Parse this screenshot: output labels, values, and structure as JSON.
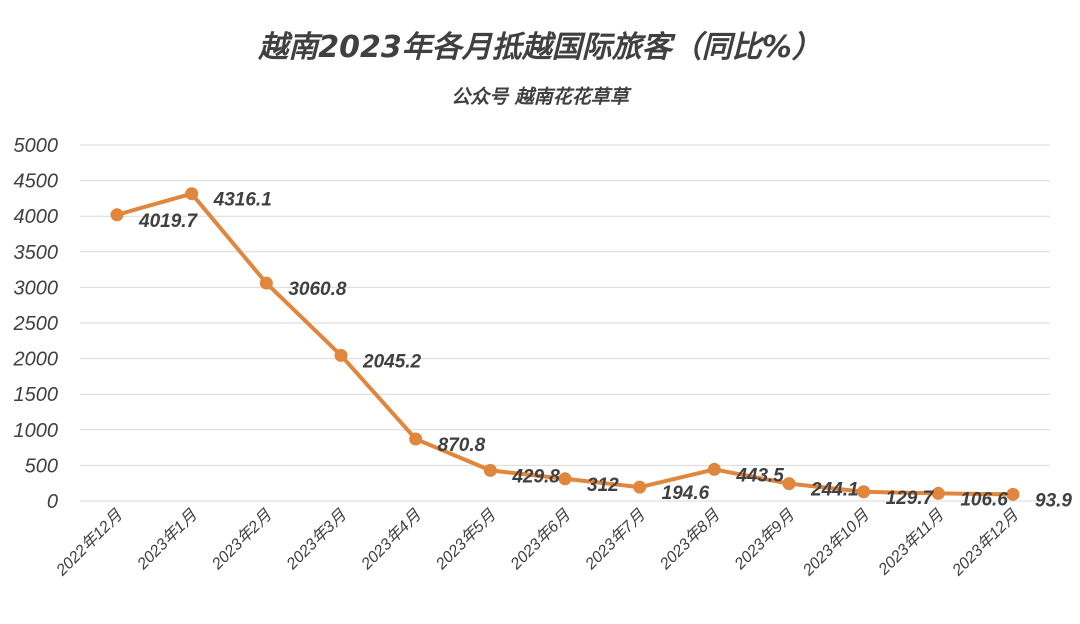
{
  "chart_data": {
    "type": "line",
    "title": "越南2023年各月抵越国际旅客（同比%）",
    "subtitle": "公众号 越南花花草草",
    "categories": [
      "2022年12月",
      "2023年1月",
      "2023年2月",
      "2023年3月",
      "2023年4月",
      "2023年5月",
      "2023年6月",
      "2023年7月",
      "2023年8月",
      "2023年9月",
      "2023年10月",
      "2023年11月",
      "2023年12月"
    ],
    "values": [
      4019.7,
      4316.1,
      3060.8,
      2045.2,
      870.8,
      429.8,
      312,
      194.6,
      443.5,
      244.1,
      129.7,
      106.6,
      93.9
    ],
    "data_labels": [
      "4019.7",
      "4316.1",
      "3060.8",
      "2045.2",
      "870.8",
      "429.8",
      "312",
      "194.6",
      "443.5",
      "244.1",
      "129.7",
      "106.6",
      "93.9"
    ],
    "yticks": [
      "0",
      "500",
      "1000",
      "1500",
      "2000",
      "2500",
      "3000",
      "3500",
      "4000",
      "4500",
      "5000"
    ],
    "ylim": [
      0,
      5000
    ],
    "ystep": 500,
    "grid": true,
    "line_color": "#E0863D",
    "grid_color": "#D9D9D9",
    "text_color": "#404040"
  }
}
